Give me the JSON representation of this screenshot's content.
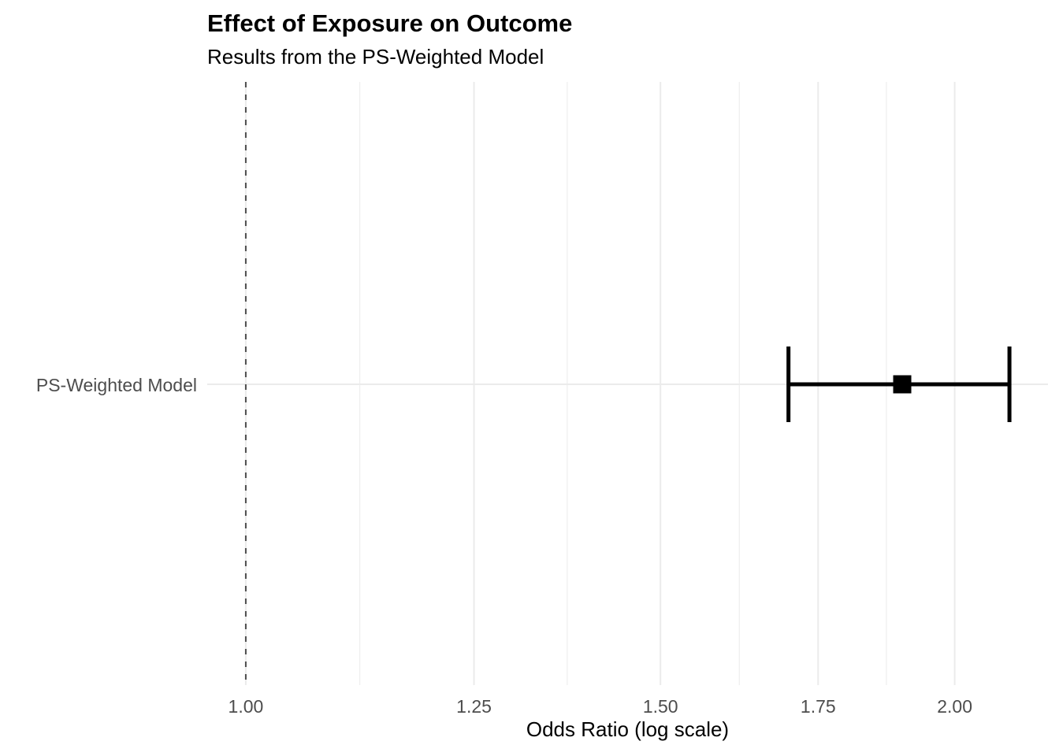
{
  "colors": {
    "background": "#ffffff",
    "grid_major": "#ebebeb",
    "grid_minor": "#ebebeb",
    "reference_line": "#4d4d4d",
    "estimate": "#000000",
    "axis_text": "#4d4d4d",
    "title_text": "#000000"
  },
  "chart_data": {
    "type": "scatter",
    "subtype": "forest-plot",
    "title": "Effect of Exposure on Outcome",
    "subtitle": "Results from the PS-Weighted Model",
    "xlabel": "Odds Ratio (log scale)",
    "ylabel": "",
    "x_scale": "log",
    "xlim": [
      0.963,
      2.191
    ],
    "x_ticks": [
      1.0,
      1.25,
      1.5,
      1.75,
      2.0
    ],
    "x_tick_labels": [
      "1.00",
      "1.25",
      "1.50",
      "1.75",
      "2.00"
    ],
    "x_minor_gridlines": [
      1.118,
      1.3693,
      1.6202,
      1.8708
    ],
    "reference_line_x": 1.0,
    "categories": [
      "PS-Weighted Model"
    ],
    "series": [
      {
        "name": "PS-Weighted Model",
        "estimate": 1.9,
        "ci_lower": 1.7,
        "ci_upper": 2.11
      }
    ],
    "grid": "vertical major+minor gridlines; one horizontal gridline per category row",
    "legend_position": "none"
  }
}
